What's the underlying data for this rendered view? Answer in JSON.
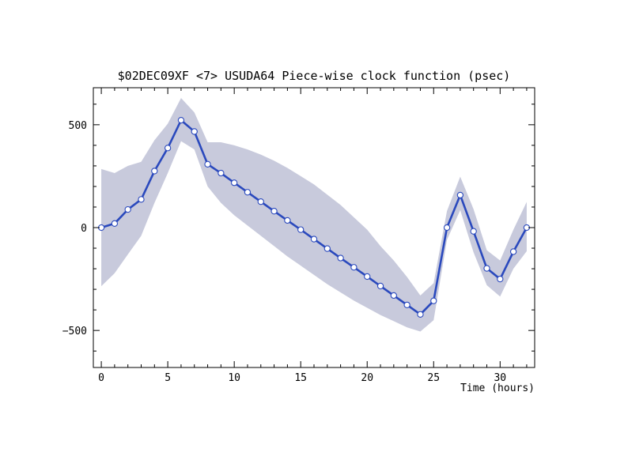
{
  "chart_data": {
    "type": "line",
    "title": "$02DEC09XF <7>  USUDA64   Piece-wise clock function (psec)",
    "xlabel": "Time (hours)",
    "ylabel": "",
    "xlim": [
      -0.6,
      32.6
    ],
    "ylim": [
      -680,
      680
    ],
    "x_ticks": [
      0,
      5,
      10,
      15,
      20,
      25,
      30
    ],
    "y_ticks": [
      500,
      0,
      -500
    ],
    "x_tick_labels": [
      "0",
      "5",
      "10",
      "15",
      "20",
      "25",
      "30"
    ],
    "y_tick_labels": [
      "500",
      "0",
      "−500"
    ],
    "grid": false,
    "series": [
      {
        "x": [
          0,
          1,
          2,
          3,
          4,
          5,
          6,
          7,
          8,
          9,
          10,
          11,
          12,
          13,
          14,
          15,
          16,
          17,
          18,
          19,
          20,
          21,
          22,
          23,
          24,
          25,
          26,
          27,
          28,
          29,
          30,
          31,
          32
        ],
        "values": [
          0,
          20,
          88,
          137,
          275,
          387,
          522,
          467,
          308,
          265,
          218,
          172,
          126,
          80,
          35,
          -10,
          -56,
          -102,
          -148,
          -193,
          -238,
          -284,
          -330,
          -376,
          -422,
          -356,
          0,
          158,
          -18,
          -198,
          -250,
          -117,
          0
        ],
        "upper": [
          285,
          265,
          300,
          320,
          425,
          505,
          630,
          560,
          415,
          415,
          400,
          380,
          355,
          325,
          290,
          250,
          210,
          160,
          110,
          50,
          -10,
          -90,
          -160,
          -240,
          -330,
          -270,
          80,
          248,
          90,
          -110,
          -160,
          -10,
          125
        ],
        "lower": [
          -285,
          -222,
          -130,
          -40,
          120,
          265,
          420,
          380,
          200,
          120,
          60,
          10,
          -40,
          -90,
          -140,
          -185,
          -230,
          -275,
          -315,
          -355,
          -390,
          -425,
          -455,
          -485,
          -505,
          -450,
          -60,
          85,
          -120,
          -280,
          -335,
          -200,
          -115
        ]
      }
    ],
    "colors": {
      "band": "#c8cadc",
      "line": "#2a49bd",
      "marker_fill": "#ffffff",
      "axes": "#000000"
    }
  }
}
